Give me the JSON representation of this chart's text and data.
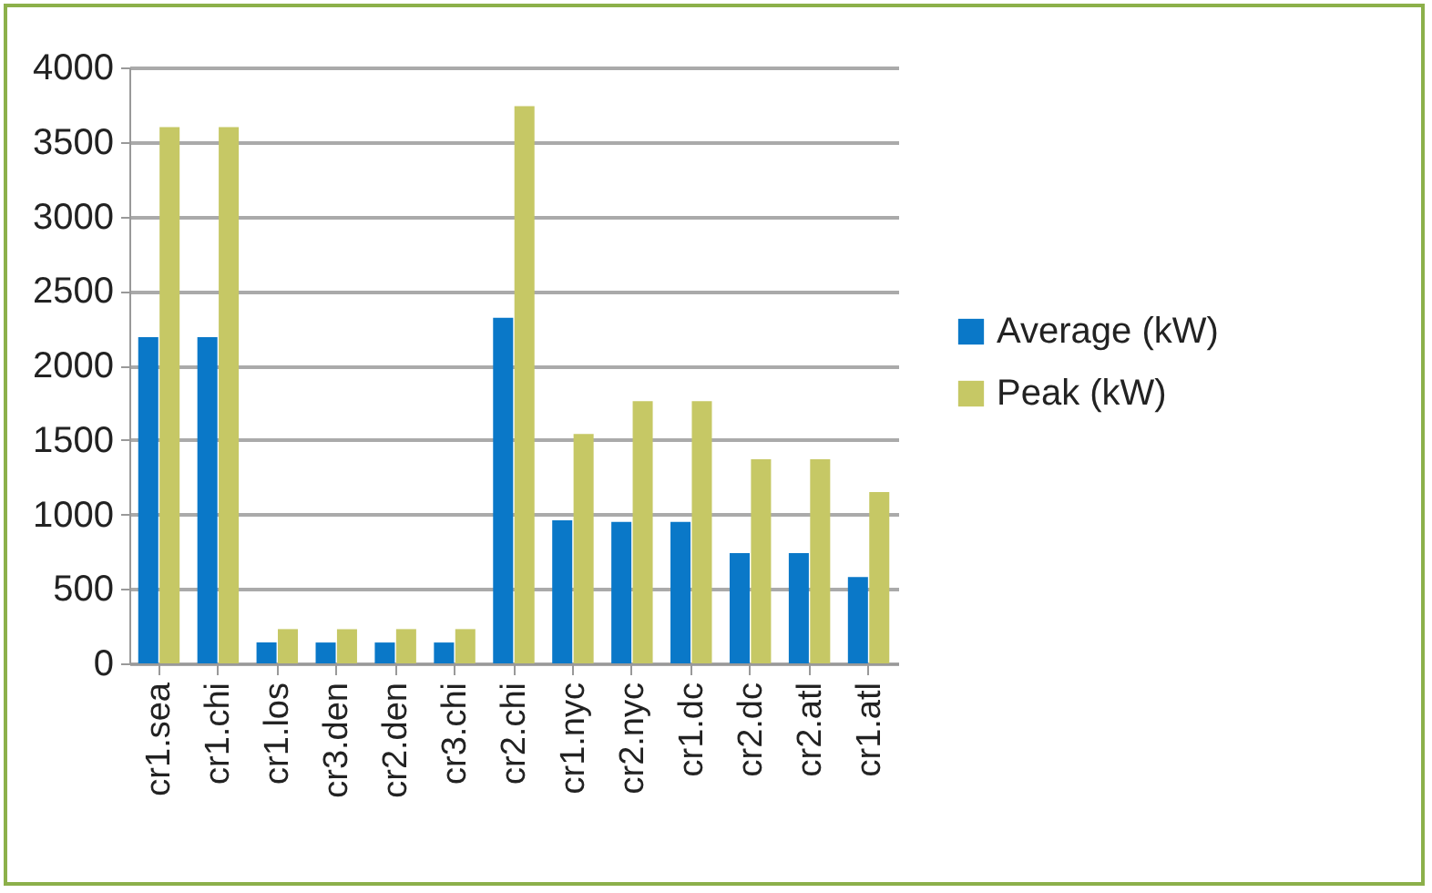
{
  "chart_data": {
    "type": "bar",
    "categories": [
      "cr1.sea",
      "cr1.chi",
      "cr1.los",
      "cr3.den",
      "cr2.den",
      "cr3.chi",
      "cr2.chi",
      "cr1.nyc",
      "cr2.nyc",
      "cr1.dc",
      "cr2.dc",
      "cr2.atl",
      "cr1.atl"
    ],
    "series": [
      {
        "name": "Average (kW)",
        "color": "#0a78c8",
        "values": [
          2190,
          2190,
          140,
          140,
          140,
          140,
          2320,
          960,
          950,
          950,
          740,
          740,
          580
        ]
      },
      {
        "name": "Peak (kW)",
        "color": "#c6c865",
        "values": [
          3600,
          3600,
          230,
          230,
          230,
          230,
          3740,
          1540,
          1760,
          1760,
          1370,
          1370,
          1150
        ]
      }
    ],
    "ylim": [
      0,
      4000
    ],
    "yticks": [
      0,
      500,
      1000,
      1500,
      2000,
      2500,
      3000,
      3500,
      4000
    ],
    "grid": "y",
    "legend": "right"
  }
}
